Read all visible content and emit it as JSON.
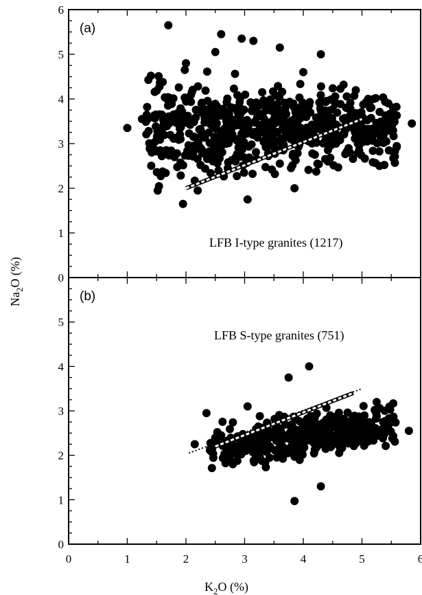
{
  "xlabel": {
    "base": "K",
    "sub": "2",
    "tail": "O (%)"
  },
  "ylabel": {
    "base": "Na",
    "sub": "2",
    "tail": "O (%)"
  },
  "colors": {
    "points": "#000000",
    "trend": "#ffffff",
    "frame": "#000000"
  },
  "chart_data": [
    {
      "type": "scatter",
      "panel_tag": "(a)",
      "annotation": "LFB I-type granites (1217)",
      "xlim": [
        0,
        6
      ],
      "ylim": [
        0,
        6
      ],
      "xticks": [
        0,
        1,
        2,
        3,
        4,
        5,
        6
      ],
      "yticks": [
        0,
        1,
        2,
        3,
        4,
        5,
        6
      ],
      "trend": {
        "x": [
          2.0,
          5.0
        ],
        "y": [
          2.0,
          3.55
        ],
        "style": "dashed-white"
      },
      "points_visible": [
        [
          1.0,
          3.35
        ],
        [
          1.7,
          5.65
        ],
        [
          2.6,
          5.45
        ],
        [
          2.95,
          5.35
        ],
        [
          3.15,
          5.3
        ],
        [
          3.6,
          5.15
        ],
        [
          4.3,
          5.0
        ],
        [
          5.85,
          3.45
        ],
        [
          5.45,
          3.9
        ],
        [
          5.2,
          4.0
        ],
        [
          1.95,
          1.65
        ],
        [
          2.2,
          1.95
        ],
        [
          3.05,
          1.75
        ],
        [
          3.85,
          2.0
        ],
        [
          5.3,
          2.5
        ],
        [
          2.0,
          4.8
        ],
        [
          2.5,
          5.05
        ],
        [
          4.0,
          4.6
        ],
        [
          3.3,
          4.15
        ],
        [
          1.25,
          3.55
        ]
      ],
      "cluster": {
        "x_range": [
          1.3,
          5.6
        ],
        "y_low": [
          2.0,
          2.7
        ],
        "y_high": [
          4.6,
          4.1
        ],
        "center": [
          3.5,
          3.1
        ],
        "count": 650,
        "seed": 11
      }
    },
    {
      "type": "scatter",
      "panel_tag": "(b)",
      "annotation": "LFB S-type granites (751)",
      "xlim": [
        0,
        6
      ],
      "ylim": [
        0,
        6
      ],
      "xticks": [
        0,
        1,
        2,
        3,
        4,
        5,
        6
      ],
      "yticks": [
        0,
        1,
        2,
        3,
        4,
        5
      ],
      "trend": {
        "x": [
          2.5,
          4.85
        ],
        "y": [
          2.2,
          3.4
        ],
        "style": "dashed-white"
      },
      "trend_extension": {
        "x": [
          2.05,
          5.0
        ],
        "y": [
          2.05,
          3.5
        ],
        "style": "dotted-black"
      },
      "points_visible": [
        [
          2.15,
          2.25
        ],
        [
          2.35,
          2.95
        ],
        [
          3.85,
          0.97
        ],
        [
          4.3,
          1.3
        ],
        [
          5.8,
          2.55
        ],
        [
          4.1,
          4.0
        ],
        [
          3.75,
          3.75
        ],
        [
          3.05,
          3.1
        ],
        [
          5.25,
          3.2
        ],
        [
          2.6,
          2.45
        ]
      ],
      "cluster": {
        "x_range": [
          2.4,
          5.6
        ],
        "y_low": [
          1.7,
          2.2
        ],
        "y_high": [
          2.6,
          3.2
        ],
        "center": [
          4.0,
          2.5
        ],
        "count": 420,
        "seed": 29
      }
    }
  ]
}
